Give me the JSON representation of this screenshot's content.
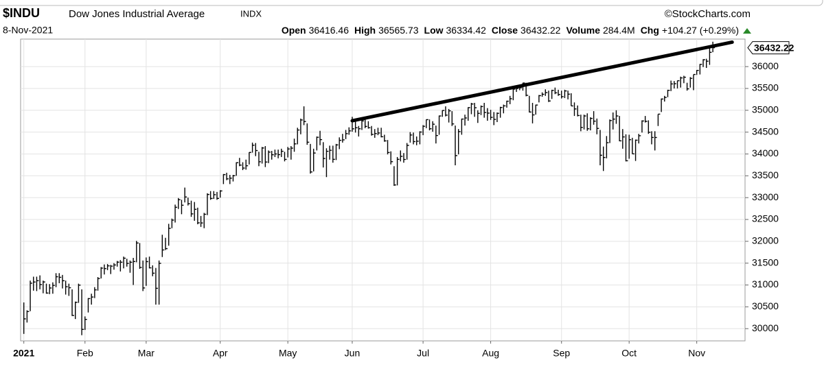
{
  "header": {
    "symbol": "$INDU",
    "name": "Dow Jones Industrial Average",
    "exchange": "INDX",
    "credit": "©StockCharts.com",
    "date": "8-Nov-2021",
    "stats": [
      {
        "label": "Open",
        "value": "36416.46"
      },
      {
        "label": "High",
        "value": "36565.73"
      },
      {
        "label": "Low",
        "value": "36334.42"
      },
      {
        "label": "Close",
        "value": "36432.22"
      },
      {
        "label": "Volume",
        "value": "284.4M"
      },
      {
        "label": "Chg",
        "value": "+104.27 (+0.29%)"
      }
    ]
  },
  "chart_data": {
    "type": "ohlc",
    "color": "#000000",
    "grid": true,
    "last_label": "36432.22",
    "xlim": [
      -1,
      224
    ],
    "xticks": [
      {
        "value": 0,
        "label": "2021"
      },
      {
        "value": 19,
        "label": "Feb"
      },
      {
        "value": 38,
        "label": "Mar"
      },
      {
        "value": 61,
        "label": "Apr"
      },
      {
        "value": 82,
        "label": "May"
      },
      {
        "value": 102,
        "label": "Jun"
      },
      {
        "value": 124,
        "label": "Jul"
      },
      {
        "value": 145,
        "label": "Aug"
      },
      {
        "value": 167,
        "label": "Sep"
      },
      {
        "value": 188,
        "label": "Oct"
      },
      {
        "value": 209,
        "label": "Nov"
      }
    ],
    "ylim": [
      29720,
      36630
    ],
    "yticks": [
      30000,
      30500,
      31000,
      31500,
      32000,
      32500,
      33000,
      33500,
      34000,
      34500,
      35000,
      35500,
      36000
    ],
    "trendline": {
      "x": [
        102,
        220
      ],
      "y": [
        34760,
        36560
      ],
      "color": "#000000"
    },
    "close": [
      30224,
      30392,
      31041,
      31068,
      31098,
      31009,
      31069,
      30815,
      30931,
      30991,
      31188,
      31176,
      31097,
      30960,
      30937,
      30303,
      30603,
      30997,
      29983,
      30212,
      30688,
      30724,
      30888,
      31148,
      31386,
      31375,
      31438,
      31431,
      31458,
      31523,
      31522,
      31613,
      31494,
      31521,
      31537,
      31961,
      31402,
      30932,
      31535,
      31392,
      31270,
      30924,
      31496,
      31802,
      31832,
      32297,
      32485,
      32779,
      32953,
      32826,
      33015,
      32862,
      32628,
      32732,
      32423,
      32420,
      32619,
      33072,
      32980,
      33067,
      32982,
      33153,
      33527,
      33430,
      33446,
      33503,
      33800,
      33745,
      33677,
      33730,
      34035,
      34200,
      34078,
      33821,
      34137,
      33815,
      34043,
      33982,
      34000,
      33984,
      34061,
      33875,
      34114,
      34133,
      34231,
      34548,
      34778,
      34743,
      34269,
      33588,
      34022,
      34382,
      34328,
      33896,
      34061,
      34084,
      33877,
      34207,
      34312,
      34323,
      34465,
      34529,
      34576,
      34600,
      34577,
      34756,
      34630,
      34600,
      34448,
      34467,
      34480,
      34394,
      34299,
      34033,
      33823,
      33290,
      33877,
      33946,
      33874,
      34196,
      34434,
      34283,
      34292,
      34502,
      34634,
      34786,
      34577,
      34681,
      34422,
      34870,
      34996,
      34889,
      34987,
      34688,
      33962,
      34512,
      34799,
      34824,
      35061,
      35144,
      35058,
      34930,
      35085,
      34950,
      34935,
      34838,
      34792,
      34931,
      35064,
      35101,
      35208,
      35265,
      35484,
      35499,
      35515,
      35625,
      35343,
      34960,
      34894,
      35120,
      35335,
      35366,
      35405,
      35213,
      35455,
      35400,
      35361,
      35312,
      35443,
      35369,
      35100,
      35031,
      34880,
      34608,
      34870,
      34577,
      34814,
      34751,
      34585,
      33970,
      33919,
      34258,
      34764,
      34798,
      34870,
      34300,
      34390,
      33844,
      34326,
      34002,
      34315,
      34417,
      34755,
      34746,
      34496,
      34378,
      34377,
      34912,
      35258,
      35294,
      35457,
      35603,
      35609,
      35677,
      35741,
      35757,
      35491,
      35731,
      35820,
      35913,
      36052,
      36157,
      36124,
      36327,
      36432
    ],
    "high": [
      30600,
      30420,
      31100,
      31190,
      31190,
      31220,
      31100,
      31030,
      31020,
      31060,
      31270,
      31270,
      31230,
      31100,
      31030,
      30900,
      30620,
      31030,
      30900,
      30280,
      30700,
      30800,
      30950,
      31180,
      31410,
      31470,
      31480,
      31460,
      31500,
      31550,
      31570,
      31650,
      31600,
      31560,
      31620,
      32010,
      31960,
      31560,
      31630,
      31650,
      31450,
      31390,
      31560,
      32150,
      32080,
      32400,
      32520,
      32840,
      32990,
      32950,
      33230,
      33000,
      32930,
      32900,
      32770,
      32580,
      32650,
      33100,
      33150,
      33150,
      33130,
      33170,
      33540,
      33570,
      33520,
      33520,
      33810,
      33910,
      33810,
      33870,
      34040,
      34260,
      34250,
      34050,
      34160,
      34180,
      34080,
      34070,
      34100,
      34100,
      34120,
      34050,
      34160,
      34180,
      34350,
      34600,
      34810,
      35090,
      34700,
      34230,
      34120,
      34400,
      34530,
      34270,
      34130,
      34190,
      34190,
      34230,
      34380,
      34460,
      34550,
      34610,
      34850,
      34740,
      34640,
      34770,
      34830,
      34750,
      34640,
      34570,
      34600,
      34600,
      34440,
      34320,
      34060,
      33720,
      33930,
      34080,
      34020,
      34250,
      34500,
      34490,
      34400,
      34520,
      34660,
      34790,
      34790,
      34750,
      34650,
      34880,
      35000,
      35090,
      35030,
      34980,
      34650,
      34570,
      34810,
      34900,
      35070,
      35170,
      35170,
      35000,
      35110,
      35170,
      35050,
      35010,
      34960,
      34950,
      35080,
      35130,
      35220,
      35330,
      35510,
      35520,
      35530,
      35630,
      35630,
      35330,
      35170,
      35130,
      35350,
      35410,
      35480,
      35450,
      35470,
      35520,
      35470,
      35450,
      35470,
      35450,
      35390,
      35180,
      35110,
      34900,
      34900,
      34930,
      34840,
      34980,
      34810,
      34550,
      34170,
      34410,
      34790,
      34950,
      35000,
      34870,
      34570,
      34450,
      34440,
      34370,
      34330,
      34460,
      34770,
      34870,
      34770,
      34520,
      34520,
      34910,
      35270,
      35330,
      35470,
      35680,
      35670,
      35680,
      35770,
      35790,
      35630,
      35760,
      35820,
      35920,
      36060,
      36170,
      36180,
      36470,
      36570
    ],
    "low": [
      29880,
      30140,
      30400,
      30870,
      30860,
      30900,
      30810,
      30800,
      30790,
      30800,
      30950,
      31040,
      30920,
      30780,
      30750,
      30290,
      30220,
      30590,
      29850,
      29970,
      30370,
      30550,
      30700,
      30870,
      31150,
      31240,
      31340,
      31250,
      31350,
      31420,
      31310,
      31380,
      31420,
      31280,
      31000,
      31520,
      31370,
      30860,
      30980,
      31380,
      31200,
      30550,
      30550,
      31640,
      31800,
      31900,
      32300,
      32430,
      32740,
      32620,
      32890,
      32820,
      32560,
      32470,
      32390,
      32330,
      32300,
      32600,
      32950,
      32970,
      32950,
      33000,
      33310,
      33400,
      33310,
      33370,
      33500,
      33720,
      33630,
      33640,
      33760,
      34030,
      33950,
      33720,
      33780,
      33700,
      33790,
      33870,
      33930,
      33900,
      33930,
      33830,
      33920,
      33870,
      34050,
      34220,
      34450,
      34660,
      34210,
      33550,
      33600,
      34080,
      34200,
      33690,
      33470,
      33870,
      33800,
      33860,
      34110,
      34260,
      34340,
      34440,
      34510,
      34490,
      34400,
      34550,
      34590,
      34580,
      34420,
      34370,
      34430,
      34380,
      34280,
      33990,
      33760,
      33270,
      33280,
      33830,
      33800,
      33870,
      34260,
      34220,
      34200,
      34220,
      34430,
      34590,
      34540,
      34510,
      34240,
      34440,
      34850,
      34860,
      34720,
      34640,
      33740,
      33990,
      34440,
      34650,
      34760,
      34910,
      34850,
      34710,
      34890,
      34830,
      34760,
      34780,
      34660,
      34730,
      34830,
      34930,
      35060,
      35140,
      35230,
      35420,
      35460,
      35450,
      35320,
      34950,
      34700,
      34900,
      35180,
      35310,
      35330,
      35190,
      35260,
      35370,
      35330,
      35270,
      35280,
      35250,
      35100,
      34870,
      34860,
      34520,
      34560,
      34530,
      34540,
      34670,
      34450,
      33740,
      33610,
      33900,
      34250,
      34560,
      34690,
      34290,
      34120,
      33830,
      33890,
      34000,
      33840,
      34240,
      34490,
      34720,
      34460,
      34220,
      34080,
      34640,
      34960,
      35200,
      35300,
      35440,
      35500,
      35500,
      35520,
      35620,
      35450,
      35520,
      35460,
      35810,
      35820,
      35990,
      35970,
      36040,
      36330
    ]
  }
}
